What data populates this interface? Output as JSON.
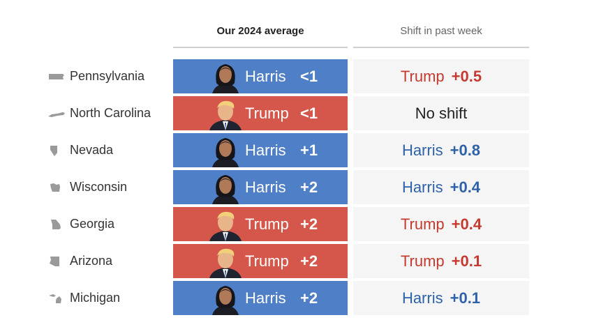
{
  "headers": {
    "average": "Our 2024 average",
    "shift": "Shift in past week"
  },
  "colors": {
    "harris_fill": "#4f7fc6",
    "trump_fill": "#d5574b",
    "harris_text": "#2e62a8",
    "trump_text": "#c53a30",
    "shift_background": "#f5f5f5"
  },
  "chart_data": {
    "type": "table",
    "columns": [
      "State",
      "Our 2024 average",
      "Shift in past week"
    ],
    "rows": [
      {
        "state": "Pennsylvania",
        "state_icon": "pennsylvania-outline-icon",
        "leader": "Harris",
        "margin": "<1",
        "shift_leader": "Trump",
        "shift": "+0.5",
        "shift_text": ""
      },
      {
        "state": "North Carolina",
        "state_icon": "north-carolina-outline-icon",
        "leader": "Trump",
        "margin": "<1",
        "shift_leader": "",
        "shift": "",
        "shift_text": "No shift"
      },
      {
        "state": "Nevada",
        "state_icon": "nevada-outline-icon",
        "leader": "Harris",
        "margin": "+1",
        "shift_leader": "Harris",
        "shift": "+0.8",
        "shift_text": ""
      },
      {
        "state": "Wisconsin",
        "state_icon": "wisconsin-outline-icon",
        "leader": "Harris",
        "margin": "+2",
        "shift_leader": "Harris",
        "shift": "+0.4",
        "shift_text": ""
      },
      {
        "state": "Georgia",
        "state_icon": "georgia-outline-icon",
        "leader": "Trump",
        "margin": "+2",
        "shift_leader": "Trump",
        "shift": "+0.4",
        "shift_text": ""
      },
      {
        "state": "Arizona",
        "state_icon": "arizona-outline-icon",
        "leader": "Trump",
        "margin": "+2",
        "shift_leader": "Trump",
        "shift": "+0.1",
        "shift_text": ""
      },
      {
        "state": "Michigan",
        "state_icon": "michigan-outline-icon",
        "leader": "Harris",
        "margin": "+2",
        "shift_leader": "Harris",
        "shift": "+0.1",
        "shift_text": ""
      }
    ]
  }
}
